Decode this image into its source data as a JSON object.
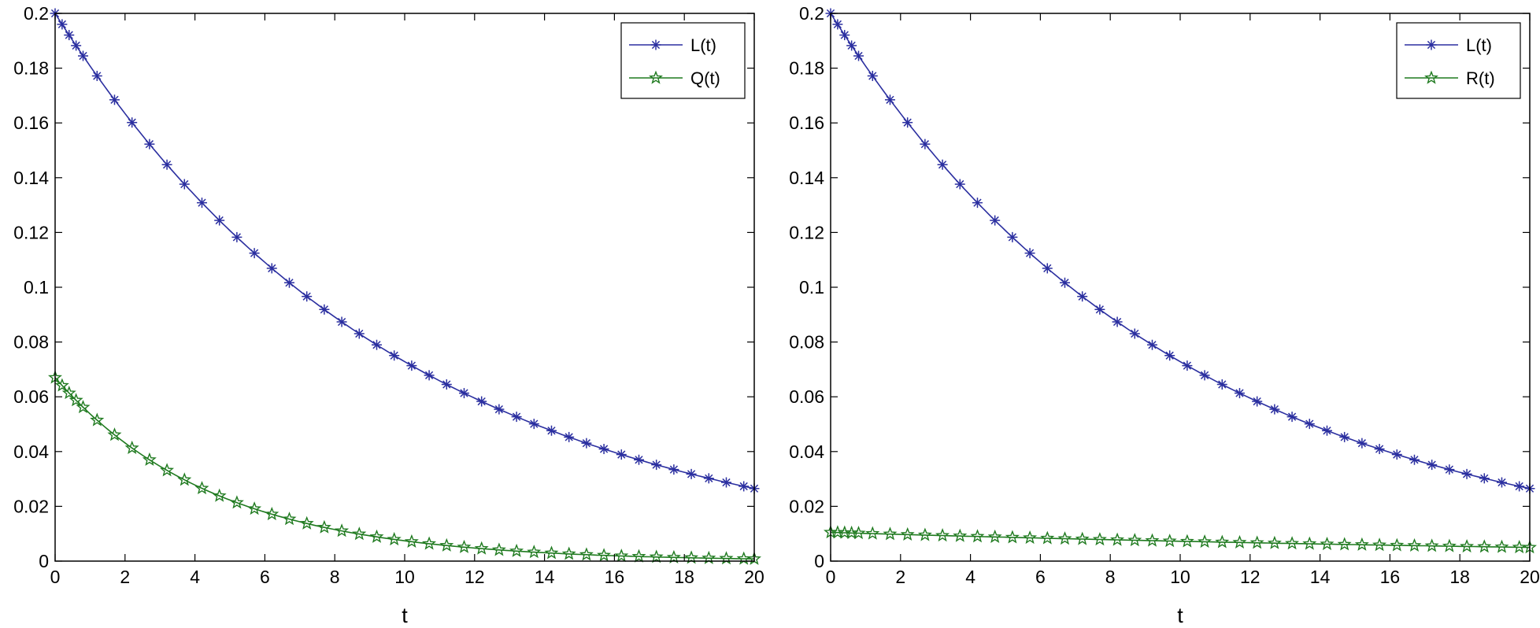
{
  "chart_data": [
    {
      "type": "line",
      "xlabel": "t",
      "ylabel": "",
      "xlim": [
        0,
        20
      ],
      "ylim": [
        0,
        0.2
      ],
      "xticks": [
        "0",
        "2",
        "4",
        "6",
        "8",
        "10",
        "12",
        "14",
        "16",
        "18",
        "20"
      ],
      "yticks": [
        "0",
        "0.02",
        "0.04",
        "0.06",
        "0.08",
        "0.1",
        "0.12",
        "0.14",
        "0.16",
        "0.18",
        "0.2"
      ],
      "grid": false,
      "legend_position": "top-right",
      "marker_t": [
        0,
        0.2,
        0.4,
        0.6,
        0.8,
        1.2,
        1.7,
        2.2,
        2.7,
        3.2,
        3.7,
        4.2,
        4.7,
        5.2,
        5.7,
        6.2,
        6.7,
        7.2,
        7.7,
        8.2,
        8.7,
        9.2,
        9.7,
        10.2,
        10.7,
        11.2,
        11.7,
        12.2,
        12.7,
        13.2,
        13.7,
        14.2,
        14.7,
        15.2,
        15.7,
        16.2,
        16.7,
        17.2,
        17.7,
        18.2,
        18.7,
        19.2,
        19.7,
        20
      ],
      "series": [
        {
          "name": "L(t)",
          "color": "#2b2fa0",
          "marker": "asterisk",
          "model": "exp_decay",
          "start": 0.2,
          "end": 0.0265,
          "floor": 0,
          "rate": 0.101
        },
        {
          "name": "Q(t)",
          "color": "#1f7a1f",
          "marker": "star",
          "model": "exp_decay",
          "start": 0.067,
          "end": 0.0008,
          "floor": 0,
          "rate": 0.22
        }
      ]
    },
    {
      "type": "line",
      "xlabel": "t",
      "ylabel": "",
      "xlim": [
        0,
        20
      ],
      "ylim": [
        0,
        0.2
      ],
      "xticks": [
        "0",
        "2",
        "4",
        "6",
        "8",
        "10",
        "12",
        "14",
        "16",
        "18",
        "20"
      ],
      "yticks": [
        "0",
        "0.02",
        "0.04",
        "0.06",
        "0.08",
        "0.1",
        "0.12",
        "0.14",
        "0.16",
        "0.18",
        "0.2"
      ],
      "grid": false,
      "legend_position": "top-right",
      "marker_t": [
        0,
        0.2,
        0.4,
        0.6,
        0.8,
        1.2,
        1.7,
        2.2,
        2.7,
        3.2,
        3.7,
        4.2,
        4.7,
        5.2,
        5.7,
        6.2,
        6.7,
        7.2,
        7.7,
        8.2,
        8.7,
        9.2,
        9.7,
        10.2,
        10.7,
        11.2,
        11.7,
        12.2,
        12.7,
        13.2,
        13.7,
        14.2,
        14.7,
        15.2,
        15.7,
        16.2,
        16.7,
        17.2,
        17.7,
        18.2,
        18.7,
        19.2,
        19.7,
        20
      ],
      "series": [
        {
          "name": "L(t)",
          "color": "#2b2fa0",
          "marker": "asterisk",
          "model": "exp_decay",
          "start": 0.2,
          "end": 0.0265,
          "floor": 0,
          "rate": 0.101
        },
        {
          "name": "R(t)",
          "color": "#1f7a1f",
          "marker": "star",
          "model": "exp_decay",
          "start": 0.0105,
          "end": 0.005,
          "floor": 0,
          "rate": 0.037
        }
      ]
    }
  ]
}
